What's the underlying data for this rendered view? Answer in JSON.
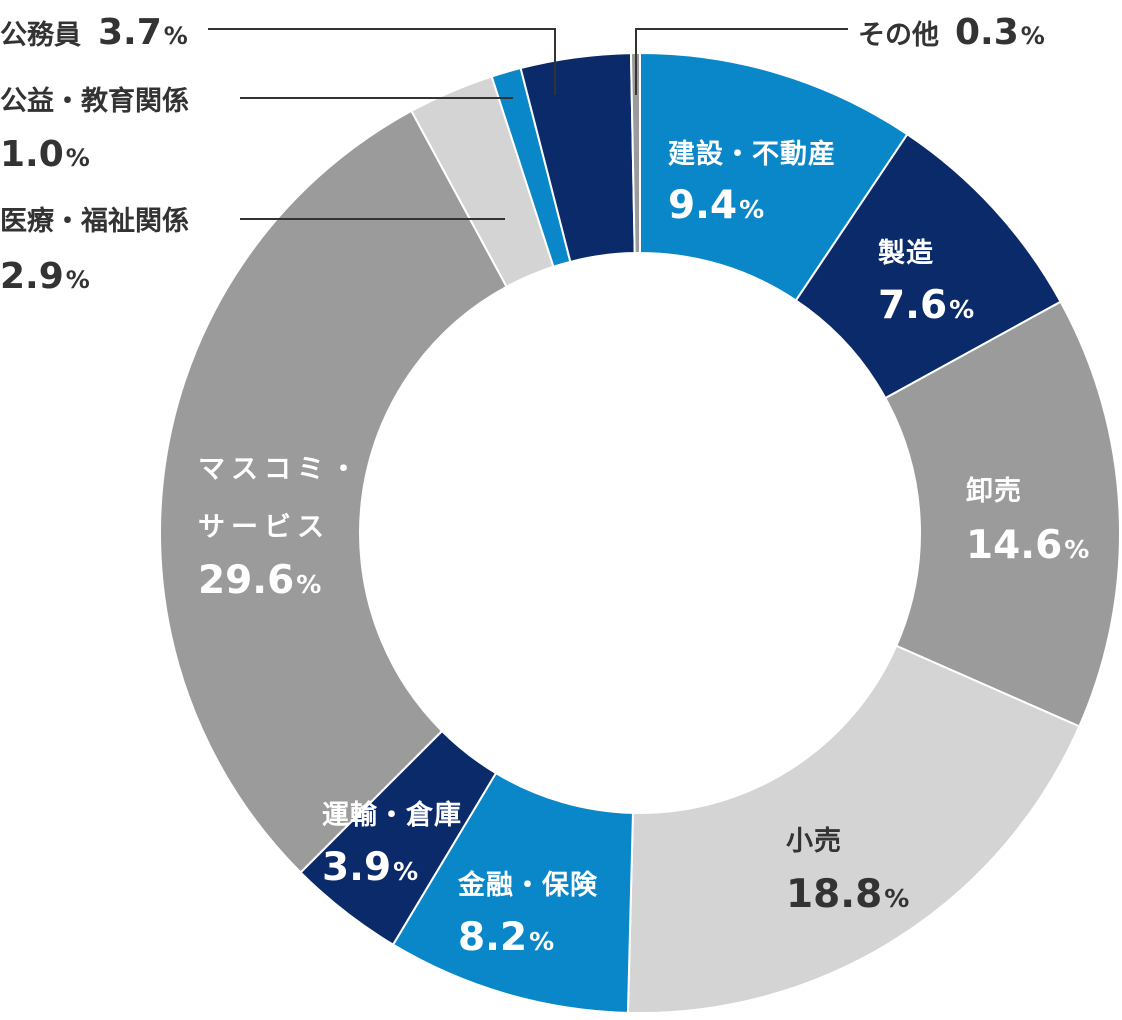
{
  "chart_data": {
    "type": "pie",
    "variant": "donut",
    "title": "",
    "unit": "%",
    "slices": [
      {
        "label": "建設・不動産",
        "value": 9.4,
        "value_text": "9.4",
        "color": "#0a87c8",
        "text_color": "#ffffff",
        "label_mode": "inside"
      },
      {
        "label": "製造",
        "value": 7.6,
        "value_text": "7.6",
        "color": "#0b2a6a",
        "text_color": "#ffffff",
        "label_mode": "inside"
      },
      {
        "label": "卸売",
        "value": 14.6,
        "value_text": "14.6",
        "color": "#9b9b9b",
        "text_color": "#ffffff",
        "label_mode": "inside"
      },
      {
        "label": "小売",
        "value": 18.8,
        "value_text": "18.8",
        "color": "#d4d4d4",
        "text_color": "#333333",
        "label_mode": "inside"
      },
      {
        "label": "金融・保険",
        "value": 8.2,
        "value_text": "8.2",
        "color": "#0a87c8",
        "text_color": "#ffffff",
        "label_mode": "inside"
      },
      {
        "label": "運輸・倉庫",
        "value": 3.9,
        "value_text": "3.9",
        "color": "#0b2a6a",
        "text_color": "#ffffff",
        "label_mode": "inside"
      },
      {
        "label": "マスコミ・サービス",
        "label_lines": [
          "マスコミ・",
          "サービス"
        ],
        "value": 29.6,
        "value_text": "29.6",
        "color": "#9b9b9b",
        "text_color": "#ffffff",
        "label_mode": "inside"
      },
      {
        "label": "医療・福祉関係",
        "value": 2.9,
        "value_text": "2.9",
        "color": "#d4d4d4",
        "text_color": "#333333",
        "label_mode": "outside"
      },
      {
        "label": "公益・教育関係",
        "value": 1.0,
        "value_text": "1.0",
        "color": "#0a87c8",
        "text_color": "#333333",
        "label_mode": "outside"
      },
      {
        "label": "公務員",
        "value": 3.7,
        "value_text": "3.7",
        "color": "#0b2a6a",
        "text_color": "#333333",
        "label_mode": "outside"
      },
      {
        "label": "その他",
        "value": 0.3,
        "value_text": "0.3",
        "color": "#9b9b9b",
        "text_color": "#333333",
        "label_mode": "outside"
      }
    ]
  }
}
